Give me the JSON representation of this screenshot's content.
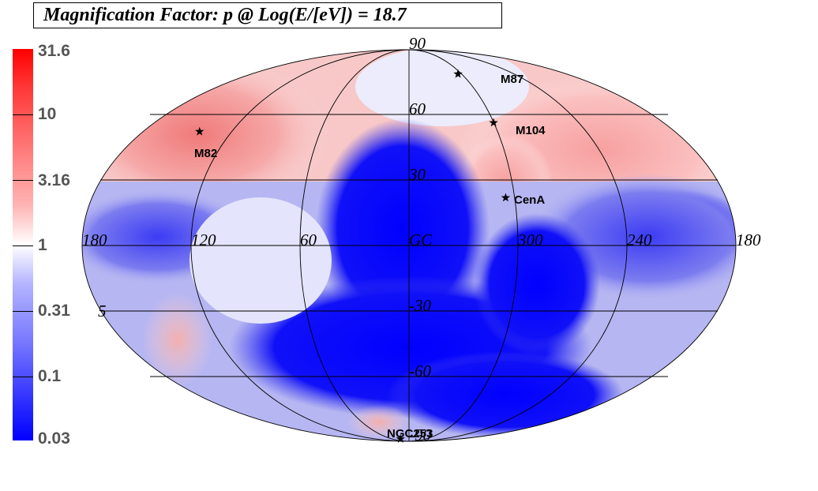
{
  "title": "Magnification Factor: p @ Log(E/[eV]) = 18.7",
  "colorbar": {
    "labels": [
      "31.6",
      "10",
      "3.16",
      "1",
      "0.31",
      "0.1",
      "0.03"
    ],
    "colors": {
      "max": "#ff0000",
      "mid": "#ffffff",
      "min": "#0000ff"
    }
  },
  "longitude_labels": [
    "180",
    "120",
    "60",
    "GC",
    "300",
    "240",
    "180"
  ],
  "latitude_labels": [
    "90",
    "60",
    "30",
    "-30",
    "-60",
    "-90"
  ],
  "sources": [
    {
      "name": "M87",
      "lon": 283.8,
      "lat": 74.5
    },
    {
      "name": "M104",
      "lon": 298.5,
      "lat": 51.1
    },
    {
      "name": "M82",
      "lon": 141.4,
      "lat": 40.6
    },
    {
      "name": "CenA",
      "lon": 309.5,
      "lat": 19.4
    },
    {
      "name": "NGC253",
      "lon": 97.4,
      "lat": -88.0
    }
  ],
  "stray_label": "5"
}
